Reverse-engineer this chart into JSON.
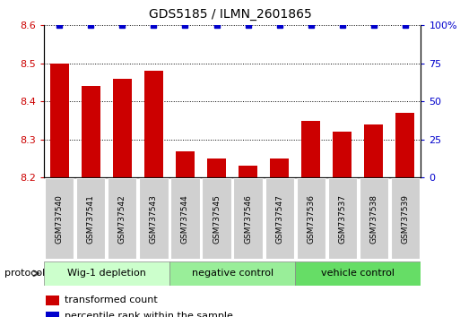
{
  "title": "GDS5185 / ILMN_2601865",
  "samples": [
    "GSM737540",
    "GSM737541",
    "GSM737542",
    "GSM737543",
    "GSM737544",
    "GSM737545",
    "GSM737546",
    "GSM737547",
    "GSM737536",
    "GSM737537",
    "GSM737538",
    "GSM737539"
  ],
  "bar_values": [
    8.5,
    8.44,
    8.46,
    8.48,
    8.27,
    8.25,
    8.23,
    8.25,
    8.35,
    8.32,
    8.34,
    8.37
  ],
  "percentile_values": [
    100,
    100,
    100,
    100,
    100,
    100,
    100,
    100,
    100,
    100,
    100,
    100
  ],
  "bar_color": "#cc0000",
  "dot_color": "#0000cc",
  "ylim_left": [
    8.2,
    8.6
  ],
  "ylim_right": [
    0,
    100
  ],
  "yticks_left": [
    8.2,
    8.3,
    8.4,
    8.5,
    8.6
  ],
  "yticks_right": [
    0,
    25,
    50,
    75,
    100
  ],
  "groups": [
    {
      "label": "Wig-1 depletion",
      "start": 0,
      "end": 4,
      "color": "#ccffcc"
    },
    {
      "label": "negative control",
      "start": 4,
      "end": 8,
      "color": "#99ee99"
    },
    {
      "label": "vehicle control",
      "start": 8,
      "end": 12,
      "color": "#66dd66"
    }
  ],
  "protocol_label": "protocol",
  "legend_red": "transformed count",
  "legend_blue": "percentile rank within the sample",
  "bg_color": "#ffffff",
  "tick_label_color_left": "#cc0000",
  "tick_label_color_right": "#0000cc",
  "xtick_bg": "#d0d0d0"
}
